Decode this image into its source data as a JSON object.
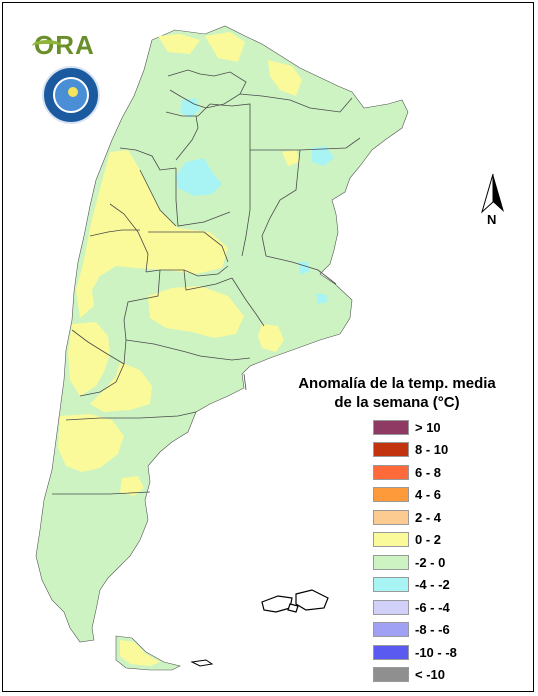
{
  "map": {
    "legend_title_line1": "Anomalía de la temp. media",
    "legend_title_line2": "de la semana (°C)",
    "north_label": "N",
    "colors": {
      "land_base": "#cdf3c3",
      "anomaly_0_2": "#fafa9a",
      "anomaly_minus4_minus2": "#a8f4f4",
      "border": "#4a4a4a"
    },
    "legend": [
      {
        "label": "> 10",
        "color": "#8f3a62"
      },
      {
        "label": "8 - 10",
        "color": "#c23410"
      },
      {
        "label": "6 - 8",
        "color": "#ff6a3a"
      },
      {
        "label": "4 - 6",
        "color": "#ff9a3a"
      },
      {
        "label": "2 - 4",
        "color": "#fccb92"
      },
      {
        "label": "0 - 2",
        "color": "#fafa9a"
      },
      {
        "label": "-2 - 0",
        "color": "#cdf3c3"
      },
      {
        "label": "-4 - -2",
        "color": "#a8f4f4"
      },
      {
        "label": "-6 - -4",
        "color": "#d0d0f8"
      },
      {
        "label": "-8 - -6",
        "color": "#a0a0f4"
      },
      {
        "label": "-10 - -8",
        "color": "#5a5af0"
      },
      {
        "label": "< -10",
        "color": "#8f8f8f"
      }
    ],
    "logos": {
      "ora": "ORA",
      "smn_icon": "weather-service-seal-icon"
    }
  }
}
